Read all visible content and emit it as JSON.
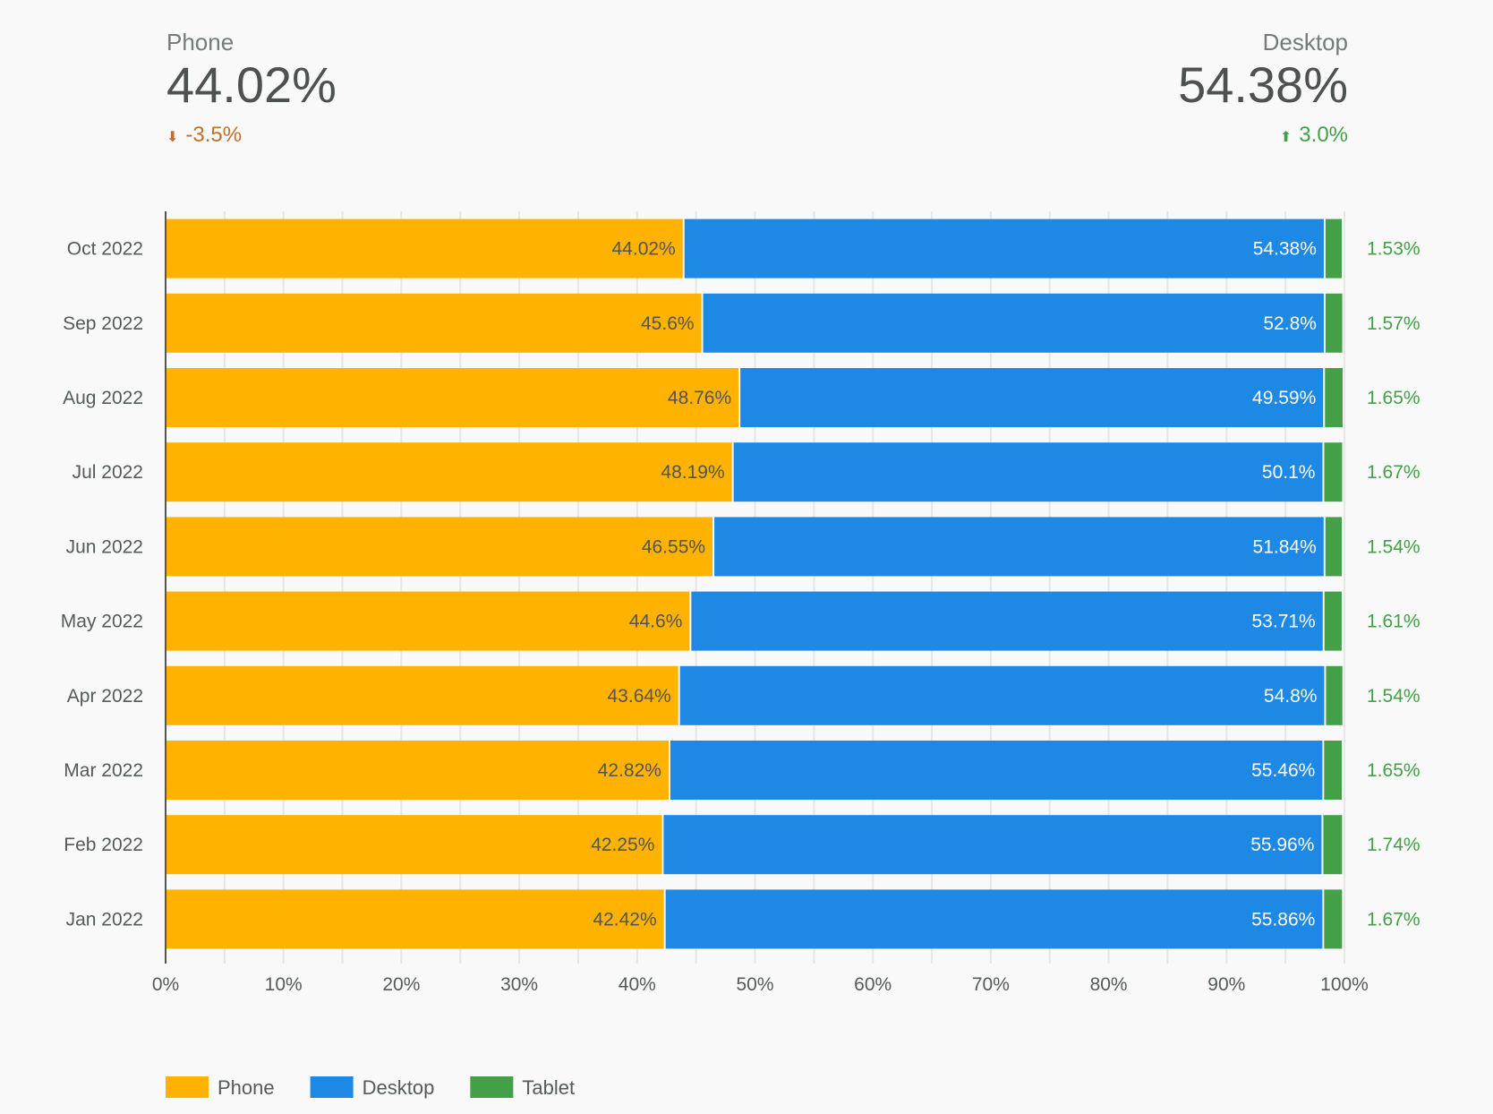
{
  "kpis": [
    {
      "label": "Phone",
      "value": "44.02%",
      "delta": "-3.5%",
      "direction": "down",
      "color": "#c0702a"
    },
    {
      "label": "Desktop",
      "value": "54.38%",
      "delta": "3.0%",
      "direction": "up",
      "color": "#43a047"
    }
  ],
  "chart_data": {
    "type": "bar",
    "orientation": "horizontal",
    "stacked": true,
    "categories": [
      "Oct 2022",
      "Sep 2022",
      "Aug 2022",
      "Jul 2022",
      "Jun 2022",
      "May 2022",
      "Apr 2022",
      "Mar 2022",
      "Feb 2022",
      "Jan 2022"
    ],
    "series": [
      {
        "name": "Phone",
        "color": "#ffb300",
        "values": [
          44.02,
          45.6,
          48.76,
          48.19,
          46.55,
          44.6,
          43.64,
          42.82,
          42.25,
          42.42
        ],
        "labels": [
          "44.02%",
          "45.6%",
          "48.76%",
          "48.19%",
          "46.55%",
          "44.6%",
          "43.64%",
          "42.82%",
          "42.25%",
          "42.42%"
        ]
      },
      {
        "name": "Desktop",
        "color": "#1e88e5",
        "values": [
          54.38,
          52.8,
          49.59,
          50.1,
          51.84,
          53.71,
          54.8,
          55.46,
          55.96,
          55.86
        ],
        "labels": [
          "54.38%",
          "52.8%",
          "49.59%",
          "50.1%",
          "51.84%",
          "53.71%",
          "54.8%",
          "55.46%",
          "55.96%",
          "55.86%"
        ]
      },
      {
        "name": "Tablet",
        "color": "#43a047",
        "values": [
          1.53,
          1.57,
          1.65,
          1.67,
          1.54,
          1.61,
          1.54,
          1.65,
          1.74,
          1.67
        ],
        "labels": [
          "1.53%",
          "1.57%",
          "1.65%",
          "1.67%",
          "1.54%",
          "1.61%",
          "1.54%",
          "1.65%",
          "1.74%",
          "1.67%"
        ]
      }
    ],
    "xlim": [
      0,
      100
    ],
    "xticks": [
      "0%",
      "10%",
      "20%",
      "30%",
      "40%",
      "50%",
      "60%",
      "70%",
      "80%",
      "90%",
      "100%"
    ],
    "grid": true,
    "legend": "bottom-left"
  }
}
